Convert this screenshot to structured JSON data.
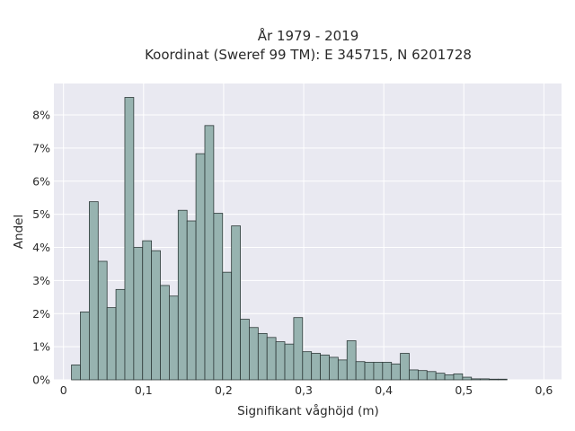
{
  "chart_data": {
    "type": "bar",
    "title": [
      "År 1979 - 2019",
      "Koordinat (Sweref 99 TM): E 345715, N 6201728"
    ],
    "xlabel": "Signifikant våghöjd (m)",
    "ylabel": "Andel",
    "xlim": [
      -0.012,
      0.622
    ],
    "ylim": [
      0,
      0.0895
    ],
    "xticks": [
      0,
      0.1,
      0.2,
      0.3,
      0.4,
      0.5,
      0.6
    ],
    "xtick_labels": [
      "0",
      "0,1",
      "0,2",
      "0,3",
      "0,4",
      "0,5",
      "0,6"
    ],
    "yticks": [
      0,
      0.01,
      0.02,
      0.03,
      0.04,
      0.05,
      0.06,
      0.07,
      0.08
    ],
    "ytick_labels": [
      "0%",
      "1%",
      "2%",
      "3%",
      "4%",
      "5%",
      "6%",
      "7%",
      "8%"
    ],
    "grid": true,
    "bin_start": 0.01,
    "bin_width": 0.0111,
    "values": [
      0.0045,
      0.0205,
      0.0538,
      0.0358,
      0.0218,
      0.0273,
      0.0853,
      0.04,
      0.042,
      0.039,
      0.0285,
      0.0253,
      0.0512,
      0.048,
      0.0683,
      0.0768,
      0.0503,
      0.0325,
      0.0465,
      0.0183,
      0.0158,
      0.014,
      0.0128,
      0.0115,
      0.0108,
      0.0188,
      0.0085,
      0.008,
      0.0075,
      0.0068,
      0.006,
      0.0118,
      0.0055,
      0.0053,
      0.0053,
      0.0053,
      0.0048,
      0.008,
      0.003,
      0.0028,
      0.0025,
      0.002,
      0.0015,
      0.0018,
      0.0008,
      0.0003,
      0.0003,
      0.0002,
      0.0002
    ]
  }
}
